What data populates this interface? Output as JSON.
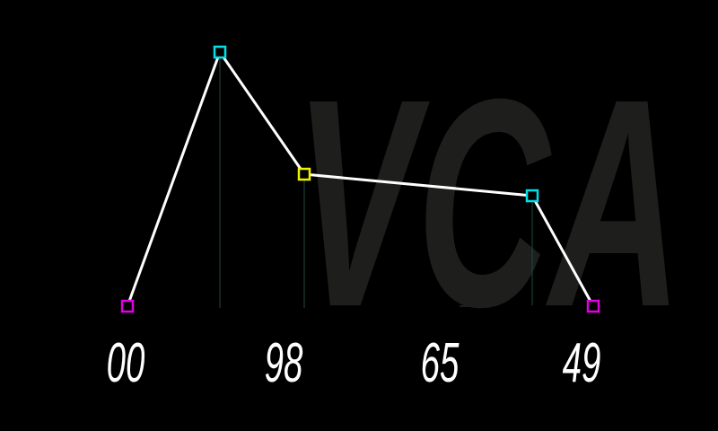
{
  "module": {
    "watermark": "VCA"
  },
  "envelope": {
    "stage_values": [
      "00",
      "98",
      "65",
      "49"
    ],
    "colors": {
      "background": "#000000",
      "watermark": "#1e1e1c",
      "curve": "#ffffff",
      "guide": "#1f4a44",
      "readout": "#ffffff",
      "node_magenta": "#e000e0",
      "node_cyan": "#00e0e8",
      "node_yellow": "#f0f000"
    },
    "node_icons": [
      "square-node-icon",
      "square-node-icon",
      "square-node-icon",
      "square-node-icon",
      "square-node-icon"
    ]
  }
}
